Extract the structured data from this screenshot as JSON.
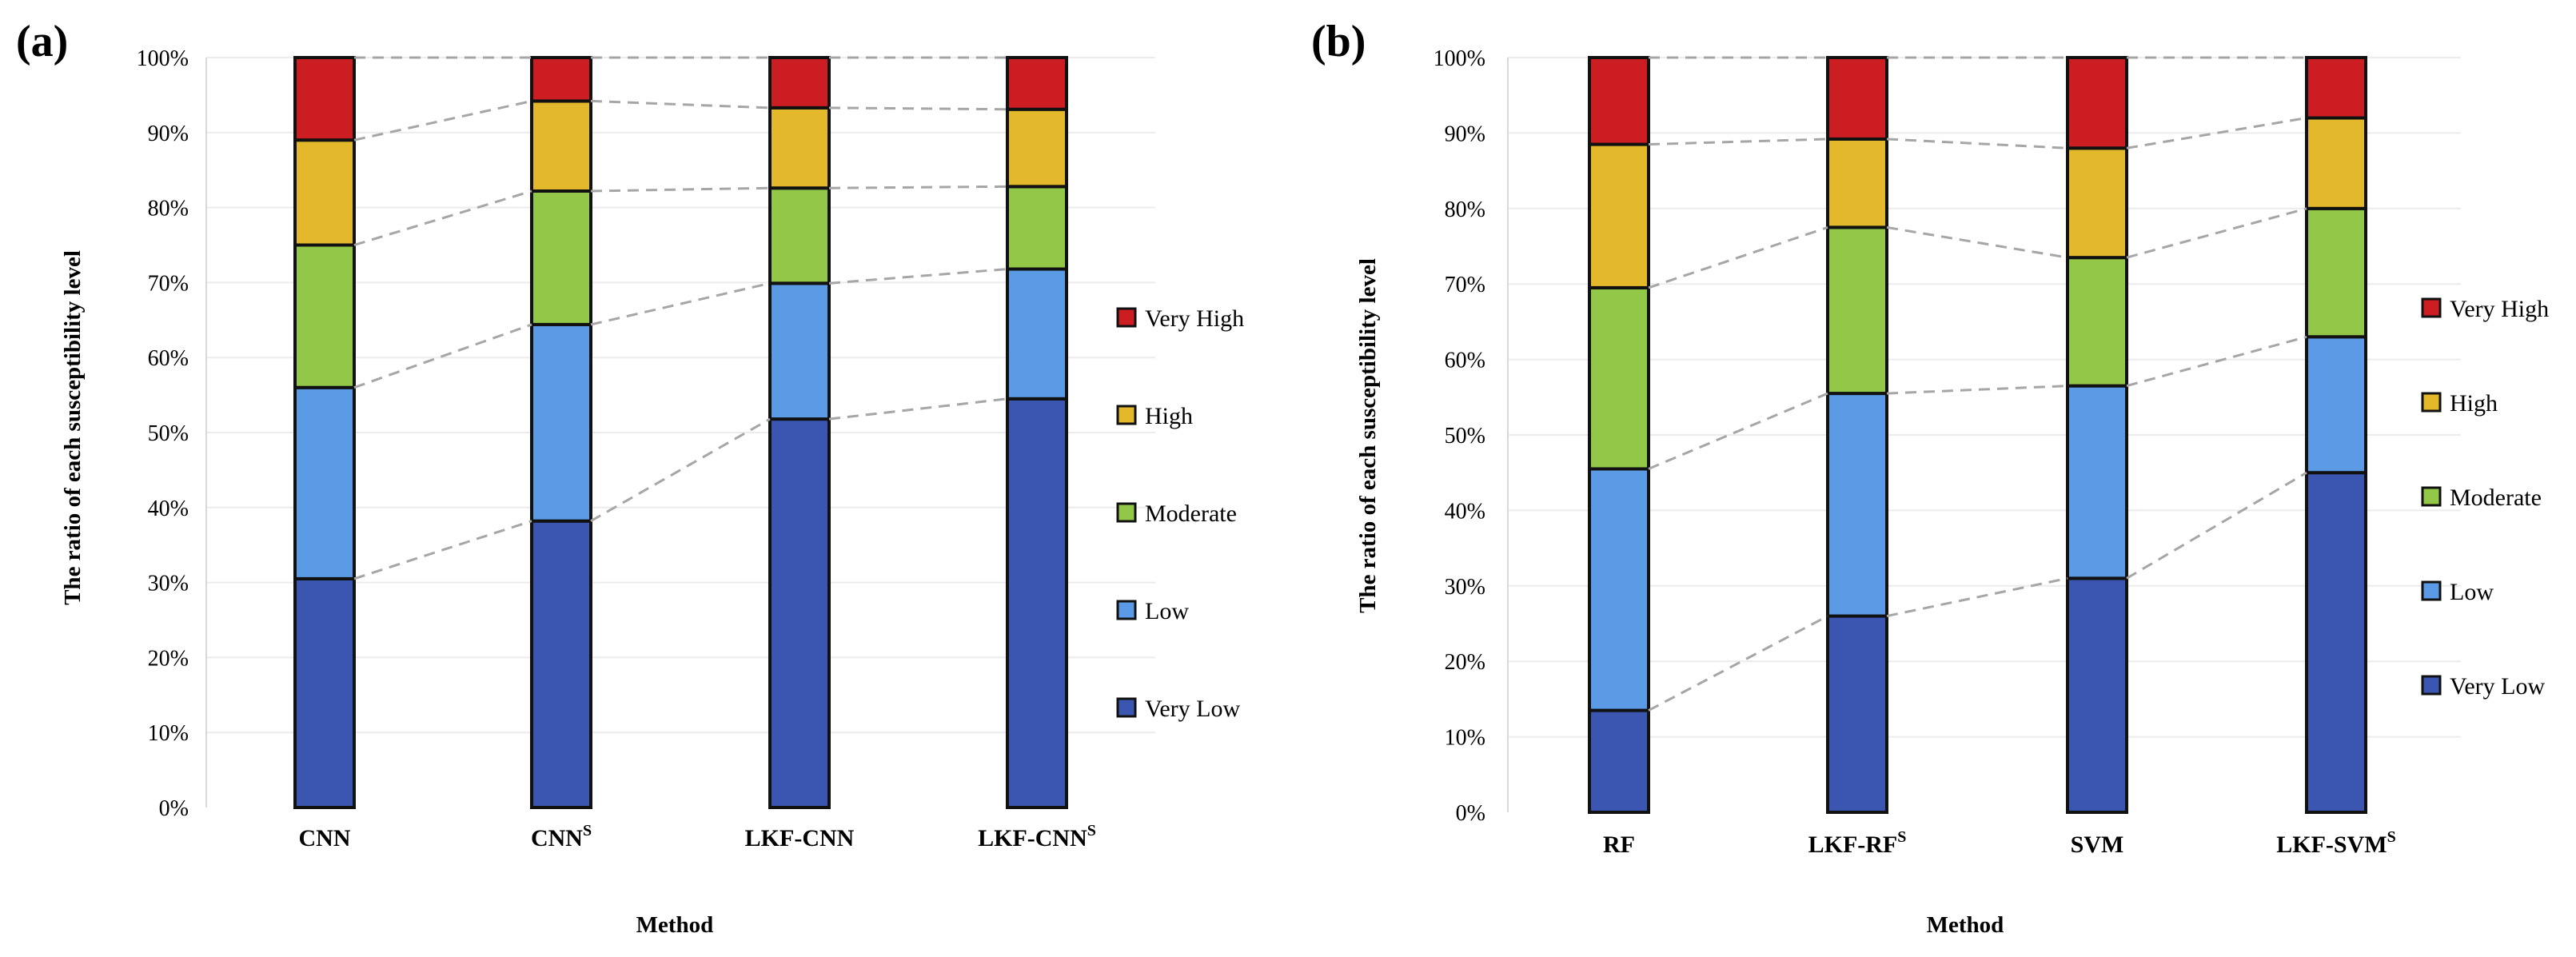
{
  "colors": {
    "very_low": "#3a56b1",
    "low": "#5b9be6",
    "moderate": "#92c748",
    "high": "#e3b82a",
    "very_high": "#cc1d22",
    "connector": "#a6a6a6",
    "gridline": "#ececec",
    "bar_border": "#111111"
  },
  "chart_data": [
    {
      "panel_label": "(a)",
      "type": "bar",
      "stacked": true,
      "ylabel": "The ratio of each susceptibility level",
      "xlabel": "Method",
      "ylim": [
        0,
        100
      ],
      "yticks": [
        "0%",
        "10%",
        "20%",
        "30%",
        "40%",
        "50%",
        "60%",
        "70%",
        "80%",
        "90%",
        "100%"
      ],
      "categories": [
        {
          "name": "CNN",
          "sup": ""
        },
        {
          "name": "CNN",
          "sup": "S"
        },
        {
          "name": "LKF-CNN",
          "sup": ""
        },
        {
          "name": "LKF-CNN",
          "sup": "S"
        }
      ],
      "series": [
        {
          "name": "Very Low",
          "color_key": "very_low",
          "values": [
            30.5,
            38.2,
            51.8,
            54.5
          ]
        },
        {
          "name": "Low",
          "color_key": "low",
          "values": [
            25.5,
            26.2,
            18.1,
            17.3
          ]
        },
        {
          "name": "Moderate",
          "color_key": "moderate",
          "values": [
            19.0,
            17.8,
            12.7,
            11.0
          ]
        },
        {
          "name": "High",
          "color_key": "high",
          "values": [
            14.0,
            12.0,
            10.7,
            10.3
          ]
        },
        {
          "name": "Very High",
          "color_key": "very_high",
          "values": [
            11.0,
            5.8,
            6.7,
            6.9
          ]
        }
      ],
      "legend": [
        "Very High",
        "High",
        "Moderate",
        "Low",
        "Very Low"
      ],
      "legend_position": "right",
      "connector_lines": true
    },
    {
      "panel_label": "(b)",
      "type": "bar",
      "stacked": true,
      "ylabel": "The ratio of each susceptibility level",
      "xlabel": "Method",
      "ylim": [
        0,
        100
      ],
      "yticks": [
        "0%",
        "10%",
        "20%",
        "30%",
        "40%",
        "50%",
        "60%",
        "70%",
        "80%",
        "90%",
        "100%"
      ],
      "categories": [
        {
          "name": "RF",
          "sup": ""
        },
        {
          "name": "LKF-RF",
          "sup": "S"
        },
        {
          "name": "SVM",
          "sup": ""
        },
        {
          "name": "LKF-SVM",
          "sup": "S"
        }
      ],
      "series": [
        {
          "name": "Very Low",
          "color_key": "very_low",
          "values": [
            13.5,
            26.0,
            31.0,
            45.0
          ]
        },
        {
          "name": "Low",
          "color_key": "low",
          "values": [
            32.0,
            29.5,
            25.5,
            18.0
          ]
        },
        {
          "name": "Moderate",
          "color_key": "moderate",
          "values": [
            24.0,
            22.0,
            17.0,
            17.0
          ]
        },
        {
          "name": "High",
          "color_key": "high",
          "values": [
            19.0,
            11.7,
            14.5,
            12.0
          ]
        },
        {
          "name": "Very High",
          "color_key": "very_high",
          "values": [
            11.5,
            10.8,
            12.0,
            8.0
          ]
        }
      ],
      "legend": [
        "Very High",
        "High",
        "Moderate",
        "Low",
        "Very Low"
      ],
      "legend_position": "right",
      "connector_lines": true
    }
  ]
}
